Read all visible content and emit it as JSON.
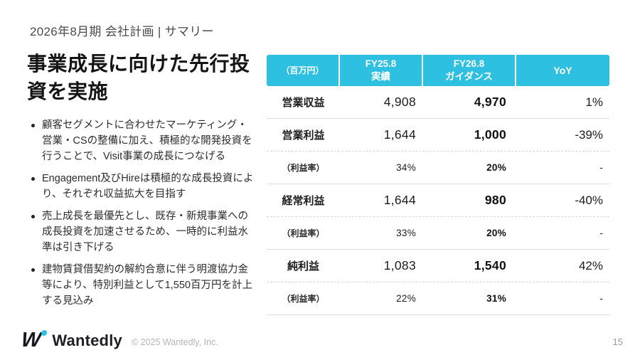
{
  "slide": {
    "kicker": "2026年8月期 会社計画 | サマリー",
    "title": "事業成長に向けた先行投資を実施",
    "bullets": [
      "顧客セグメントに合わせたマーケティング・営業・CSの整備に加え、積極的な開発投資を行うことで、Visit事業の成長につなげる",
      "Engagement及びHireは積極的な成長投資により、それぞれ収益拡大を目指す",
      "売上成長を最優先とし、既存・新規事業への成長投資を加速させるため、一時的に利益水準は引き下げる",
      "建物賃貸借契約の解約合意に伴う明渡協力金等により、特別利益として1,550百万円を計上する見込み"
    ]
  },
  "table": {
    "headers": {
      "unit": "（百万円）",
      "fy25_line1": "FY25.8",
      "fy25_line2": "実績",
      "fy26_line1": "FY26.8",
      "fy26_line2": "ガイダンス",
      "yoy": "YoY"
    },
    "rows": [
      {
        "label": "営業収益",
        "fy25": "4,908",
        "fy26": "4,970",
        "yoy": "1%"
      },
      {
        "label": "営業利益",
        "fy25": "1,644",
        "fy26": "1,000",
        "yoy": "-39%"
      },
      {
        "label": "（利益率）",
        "fy25": "34%",
        "fy26": "20%",
        "yoy": "-"
      },
      {
        "label": "経常利益",
        "fy25": "1,644",
        "fy26": "980",
        "yoy": "-40%"
      },
      {
        "label": "（利益率）",
        "fy25": "33%",
        "fy26": "20%",
        "yoy": "-"
      },
      {
        "label": "純利益",
        "fy25": "1,083",
        "fy26": "1,540",
        "yoy": "42%"
      },
      {
        "label": "（利益率）",
        "fy25": "22%",
        "fy26": "31%",
        "yoy": "-"
      }
    ]
  },
  "footer": {
    "logo_letter": "W",
    "brand": "Wantedly",
    "copyright": "© 2025 Wantedly, Inc.",
    "page_number": "15"
  },
  "colors": {
    "accent": "#2EC0E0"
  }
}
